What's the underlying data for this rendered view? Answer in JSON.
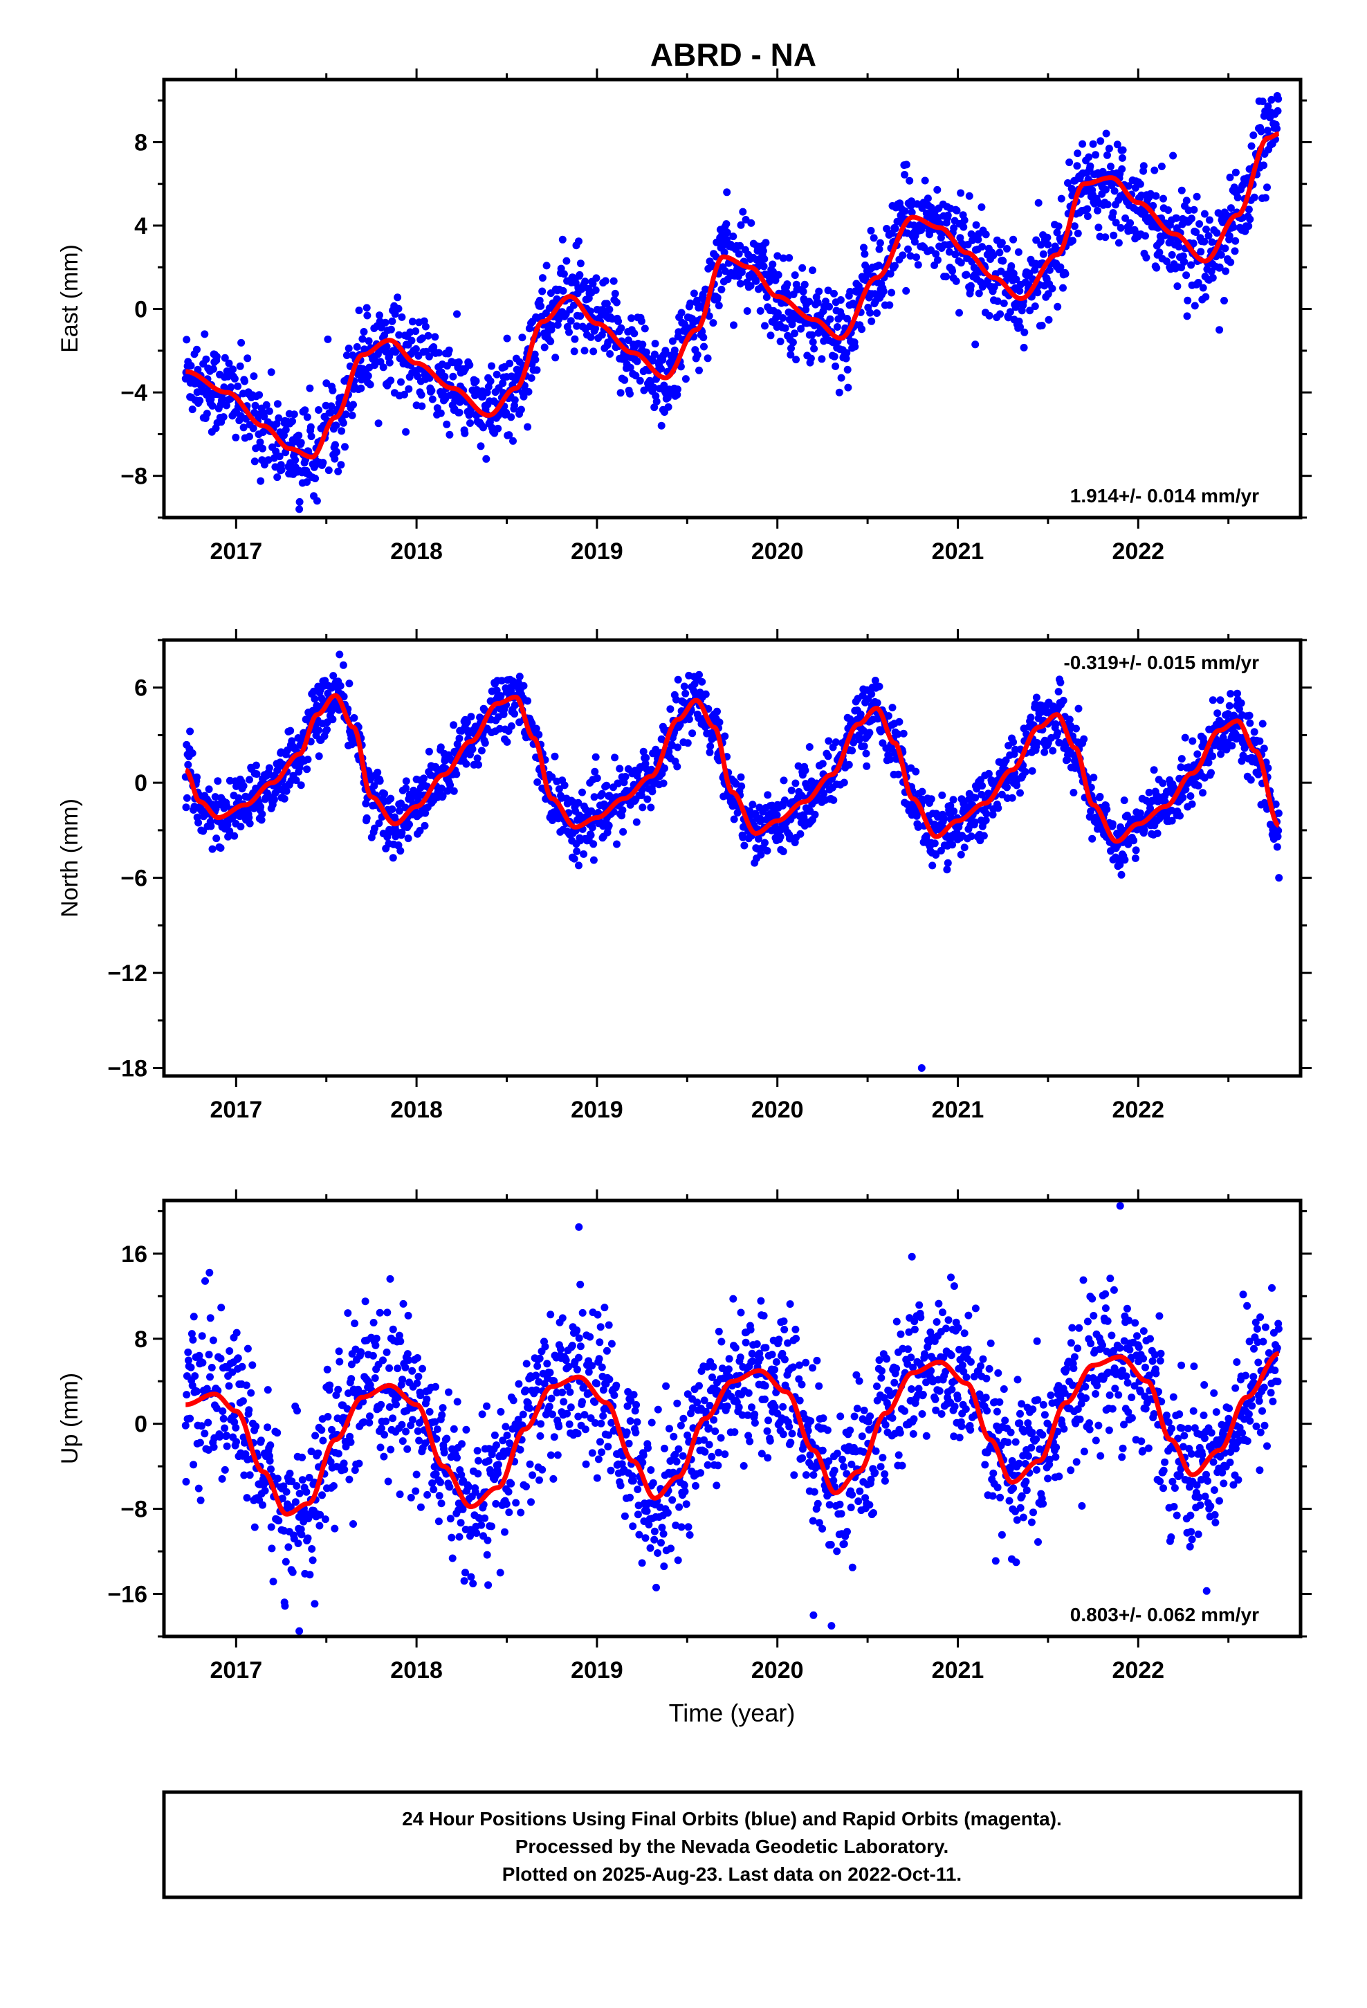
{
  "title": "ABRD - NA",
  "xlabel": "Time (year)",
  "colors": {
    "points": "#0000ff",
    "fit": "#ff0000",
    "frame": "#000000"
  },
  "footer": {
    "line1": "24 Hour Positions Using Final Orbits (blue) and Rapid Orbits (magenta).",
    "line2": "Processed by the Nevada Geodetic Laboratory.",
    "line3": "Plotted on 2025-Aug-23. Last data on 2022-Oct-11."
  },
  "chart_data": [
    {
      "type": "scatter",
      "component": "east",
      "ylabel": "East (mm)",
      "xlim": [
        2016.6,
        2022.9
      ],
      "ylim": [
        -10,
        11
      ],
      "xticks": [
        2017,
        2018,
        2019,
        2020,
        2021,
        2022
      ],
      "yticks": [
        -8,
        -4,
        0,
        4,
        8
      ],
      "rate_text": "1.914+/- 0.014 mm/yr",
      "rate_position": "bottom-right",
      "noise_mm": 1.1,
      "fit_curve": {
        "x": [
          2016.72,
          2016.95,
          2017.15,
          2017.3,
          2017.42,
          2017.55,
          2017.7,
          2017.85,
          2018.0,
          2018.2,
          2018.4,
          2018.55,
          2018.7,
          2018.85,
          2019.0,
          2019.2,
          2019.38,
          2019.55,
          2019.7,
          2019.85,
          2020.0,
          2020.2,
          2020.35,
          2020.55,
          2020.75,
          2020.9,
          2021.05,
          2021.2,
          2021.35,
          2021.55,
          2021.7,
          2021.85,
          2022.0,
          2022.2,
          2022.37,
          2022.55,
          2022.72,
          2022.78
        ],
        "y": [
          -3.0,
          -4.0,
          -5.6,
          -6.7,
          -7.1,
          -5.2,
          -2.2,
          -1.5,
          -2.6,
          -3.8,
          -5.1,
          -3.8,
          -0.6,
          0.6,
          -0.7,
          -2.1,
          -3.3,
          -1.0,
          2.5,
          2.0,
          0.6,
          -0.5,
          -1.4,
          1.5,
          4.4,
          3.9,
          2.7,
          1.5,
          0.5,
          2.6,
          6.0,
          6.3,
          5.1,
          3.6,
          2.3,
          4.5,
          8.2,
          8.4
        ]
      },
      "outliers": [
        {
          "x": 2017.35,
          "y": -9.6
        },
        {
          "x": 2022.45,
          "y": -1.0
        },
        {
          "x": 2019.72,
          "y": 5.6
        }
      ]
    },
    {
      "type": "scatter",
      "component": "north",
      "ylabel": "North (mm)",
      "xlim": [
        2016.6,
        2022.9
      ],
      "ylim": [
        -18.5,
        9
      ],
      "xticks": [
        2017,
        2018,
        2019,
        2020,
        2021,
        2022
      ],
      "yticks": [
        -18,
        -12,
        -6,
        0,
        6
      ],
      "rate_text": "-0.319+/- 0.015 mm/yr",
      "rate_position": "top-right",
      "noise_mm": 1.0,
      "fit_curve": {
        "x": [
          2016.72,
          2016.8,
          2016.9,
          2017.05,
          2017.2,
          2017.35,
          2017.45,
          2017.55,
          2017.65,
          2017.75,
          2017.88,
          2018.0,
          2018.15,
          2018.3,
          2018.45,
          2018.55,
          2018.65,
          2018.75,
          2018.88,
          2019.0,
          2019.15,
          2019.3,
          2019.45,
          2019.55,
          2019.65,
          2019.75,
          2019.88,
          2020.0,
          2020.15,
          2020.3,
          2020.45,
          2020.55,
          2020.65,
          2020.75,
          2020.88,
          2021.0,
          2021.15,
          2021.3,
          2021.45,
          2021.55,
          2021.65,
          2021.75,
          2021.88,
          2022.0,
          2022.15,
          2022.3,
          2022.45,
          2022.55,
          2022.65,
          2022.78
        ],
        "y": [
          0.8,
          -1.2,
          -2.2,
          -1.4,
          0.0,
          1.8,
          4.3,
          5.5,
          3.5,
          -0.9,
          -2.6,
          -1.5,
          0.5,
          2.6,
          5.0,
          5.4,
          2.8,
          -1.0,
          -2.8,
          -2.2,
          -1.0,
          0.4,
          4.0,
          5.2,
          3.5,
          -0.6,
          -3.2,
          -2.4,
          -1.2,
          0.5,
          3.7,
          4.7,
          2.5,
          -1.0,
          -3.4,
          -2.4,
          -1.3,
          0.8,
          3.5,
          4.3,
          2.2,
          -1.4,
          -3.7,
          -2.6,
          -1.5,
          0.6,
          3.3,
          3.9,
          2.0,
          -2.7
        ]
      },
      "outliers": [
        {
          "x": 2020.8,
          "y": -18.0
        },
        {
          "x": 2022.78,
          "y": -6.0
        }
      ]
    },
    {
      "type": "scatter",
      "component": "up",
      "ylabel": "Up (mm)",
      "xlim": [
        2016.6,
        2022.9
      ],
      "ylim": [
        -20,
        21
      ],
      "xticks": [
        2017,
        2018,
        2019,
        2020,
        2021,
        2022
      ],
      "yticks": [
        -16,
        -8,
        0,
        8,
        16
      ],
      "rate_text": "0.803+/- 0.062 mm/yr",
      "rate_position": "bottom-right",
      "noise_mm": 3.6,
      "fit_curve": {
        "x": [
          2016.72,
          2016.88,
          2017.0,
          2017.15,
          2017.28,
          2017.4,
          2017.55,
          2017.7,
          2017.85,
          2018.0,
          2018.15,
          2018.3,
          2018.45,
          2018.6,
          2018.75,
          2018.9,
          2019.05,
          2019.2,
          2019.32,
          2019.45,
          2019.6,
          2019.75,
          2019.9,
          2020.05,
          2020.2,
          2020.32,
          2020.45,
          2020.6,
          2020.75,
          2020.9,
          2021.05,
          2021.18,
          2021.3,
          2021.45,
          2021.6,
          2021.75,
          2021.9,
          2022.05,
          2022.18,
          2022.3,
          2022.45,
          2022.6,
          2022.78
        ],
        "y": [
          1.8,
          2.8,
          1.2,
          -4.5,
          -8.5,
          -7.5,
          -1.5,
          2.5,
          3.6,
          1.8,
          -4.0,
          -7.8,
          -6.0,
          -0.5,
          3.5,
          4.4,
          2.0,
          -3.5,
          -7.0,
          -5.0,
          0.5,
          4.0,
          5.0,
          3.0,
          -2.5,
          -6.5,
          -4.5,
          1.0,
          4.8,
          5.8,
          3.8,
          -1.5,
          -5.5,
          -3.5,
          2.0,
          5.5,
          6.3,
          4.0,
          -1.5,
          -4.8,
          -2.5,
          2.5,
          6.6
        ]
      },
      "outliers": [
        {
          "x": 2017.35,
          "y": -19.5
        },
        {
          "x": 2020.3,
          "y": -19.0
        },
        {
          "x": 2021.9,
          "y": 20.5
        },
        {
          "x": 2018.9,
          "y": 18.5
        },
        {
          "x": 2020.2,
          "y": -18.0
        }
      ]
    }
  ]
}
